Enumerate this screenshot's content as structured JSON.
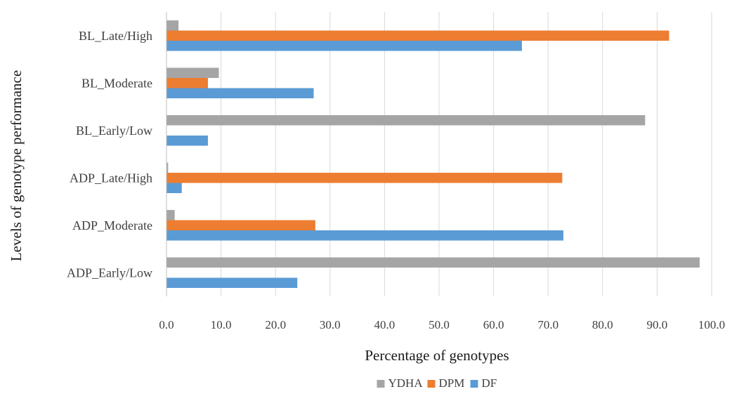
{
  "chart_data": {
    "type": "bar",
    "orientation": "horizontal",
    "title": "",
    "xlabel": "Percentage of genotypes",
    "ylabel": "Levels of genotype performance",
    "xlim": [
      0,
      100
    ],
    "x_ticks": [
      "0.0",
      "10.0",
      "20.0",
      "30.0",
      "40.0",
      "50.0",
      "60.0",
      "70.0",
      "80.0",
      "90.0",
      "100.0"
    ],
    "categories": [
      "BL_Late/High",
      "BL_Moderate",
      "BL_Early/Low",
      "ADP_Late/High",
      "ADP_Moderate",
      "ADP_Early/Low"
    ],
    "series": [
      {
        "name": "YDHA",
        "color": "#a5a5a5",
        "values": [
          2.2,
          9.6,
          87.8,
          0.3,
          1.5,
          97.8
        ]
      },
      {
        "name": "DPM",
        "color": "#ed7d31",
        "values": [
          92.2,
          7.6,
          0,
          72.6,
          27.3,
          0
        ]
      },
      {
        "name": "DF",
        "color": "#5b9bd5",
        "values": [
          65.2,
          27.0,
          7.6,
          2.8,
          72.8,
          24.0
        ]
      }
    ],
    "grid": true,
    "legend_position": "bottom"
  }
}
